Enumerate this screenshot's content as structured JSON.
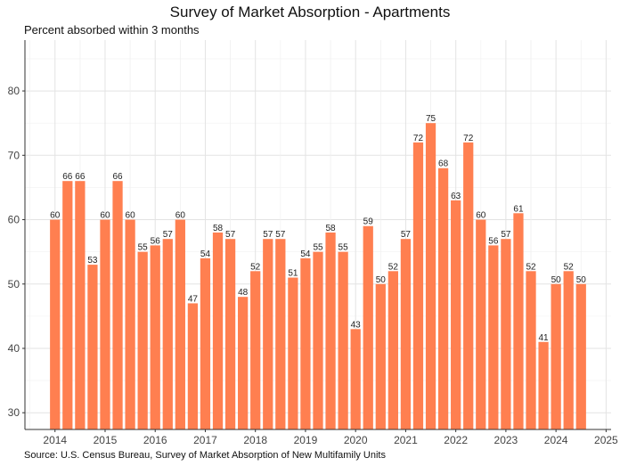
{
  "chart_data": {
    "type": "bar",
    "title": "Survey of Market Absorption - Apartments",
    "subtitle": "Percent absorbed within 3 months",
    "source": "Source: U.S. Census Bureau, Survey of Market Absorption of New Multifamily Units",
    "xlabel": "",
    "ylabel": "",
    "x_ticks": [
      2014,
      2015,
      2016,
      2017,
      2018,
      2019,
      2020,
      2021,
      2022,
      2023,
      2024,
      2025
    ],
    "y_ticks": [
      30,
      40,
      50,
      60,
      70,
      80
    ],
    "xlim": [
      2013.4,
      2025.1
    ],
    "ylim": [
      27.4,
      87.9
    ],
    "grid": true,
    "bar_color": "#FF7F50",
    "start": {
      "year": 2014,
      "quarter": 1
    },
    "values": [
      60,
      66,
      66,
      53,
      60,
      66,
      60,
      55,
      56,
      57,
      60,
      47,
      54,
      58,
      57,
      48,
      52,
      57,
      57,
      51,
      54,
      55,
      58,
      55,
      43,
      59,
      50,
      52,
      57,
      72,
      75,
      68,
      63,
      72,
      60,
      56,
      57,
      61,
      52,
      41,
      50,
      52,
      50
    ]
  }
}
